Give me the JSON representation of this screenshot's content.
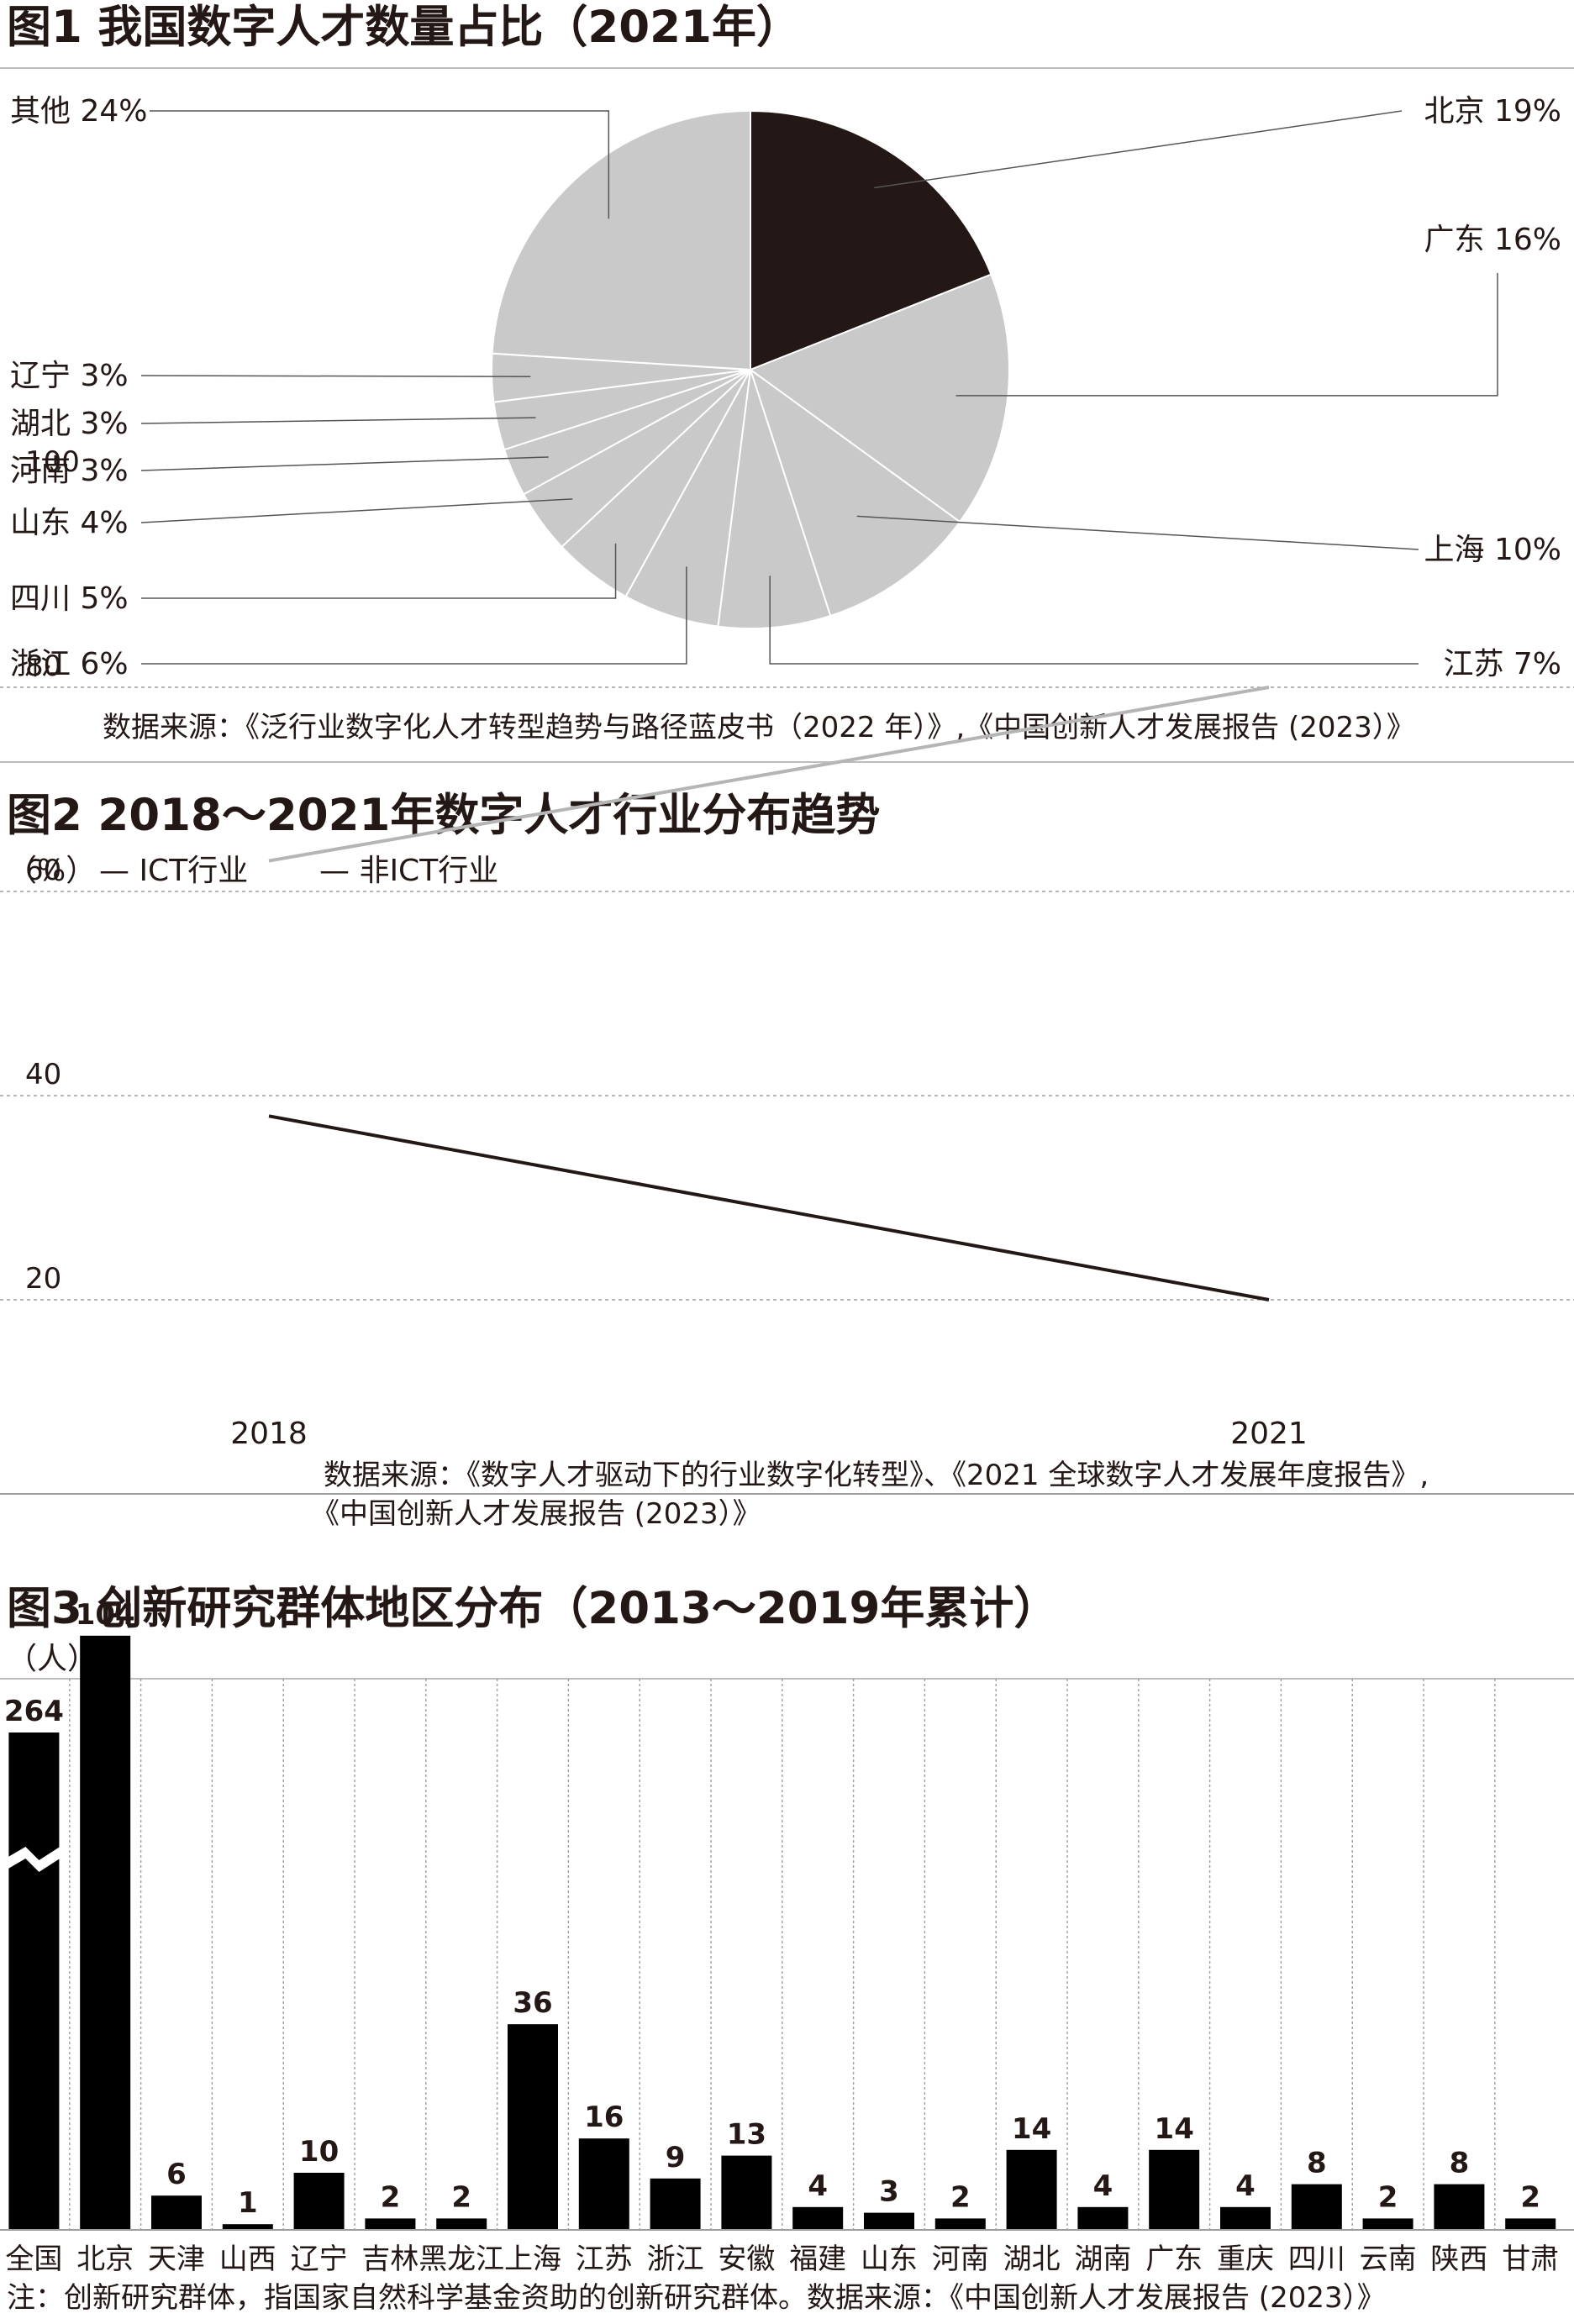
{
  "colors": {
    "dark": "#231815",
    "light": "#c9c9ca",
    "grid": "#9d9d9d",
    "bar": "#000000"
  },
  "fig1": {
    "title": "图1 我国数字人才数量占比（2021年）",
    "source": "数据来源：《泛行业数字化人才转型趋势与路径蓝皮书（2022 年）》,《中国创新人才发展报告 (2023）》"
  },
  "fig2": {
    "title": "图2 2018～2021年数字人才行业分布趋势",
    "unit": "（%）",
    "legend": [
      "— ICT行业",
      "— 非ICT行业"
    ],
    "source_line1": "数据来源：《数字人才驱动下的行业数字化转型》、《2021 全球数字人才发展年度报告》,",
    "source_line2": "《中国创新人才发展报告 (2023）》"
  },
  "fig3": {
    "title": "图3 创新研究群体地区分布（2013～2019年累计）",
    "unit": "（人）",
    "note": "注：创新研究群体，指国家自然科学基金资助的创新研究群体。数据来源：《中国创新人才发展报告 (2023）》"
  },
  "chart_data": [
    {
      "type": "pie",
      "title": "图1 我国数字人才数量占比（2021年）",
      "slices": [
        {
          "label": "北京",
          "value": 19,
          "display": "北京 19%"
        },
        {
          "label": "广东",
          "value": 16,
          "display": "广东 16%"
        },
        {
          "label": "上海",
          "value": 10,
          "display": "上海 10%"
        },
        {
          "label": "江苏",
          "value": 7,
          "display": "江苏 7%"
        },
        {
          "label": "浙江",
          "value": 6,
          "display": "浙江 6%"
        },
        {
          "label": "四川",
          "value": 5,
          "display": "四川 5%"
        },
        {
          "label": "山东",
          "value": 4,
          "display": "山东 4%"
        },
        {
          "label": "河南",
          "value": 3,
          "display": "河南 3%"
        },
        {
          "label": "湖北",
          "value": 3,
          "display": "湖北 3%"
        },
        {
          "label": "辽宁",
          "value": 3,
          "display": "辽宁 3%"
        },
        {
          "label": "其他",
          "value": 24,
          "display": "其他 24%"
        }
      ]
    },
    {
      "type": "line",
      "title": "图2 2018～2021年数字人才行业分布趋势",
      "ylabel": "（%）",
      "x": [
        "2018",
        "2021"
      ],
      "ylim": [
        0,
        100
      ],
      "yticks": [
        100,
        80,
        60,
        40,
        20
      ],
      "grid": true,
      "legend_position": "top-left",
      "series": [
        {
          "name": "ICT行业",
          "values": [
            38,
            20
          ]
        },
        {
          "name": "非ICT行业",
          "values": [
            63,
            80
          ]
        }
      ]
    },
    {
      "type": "bar",
      "title": "图3 创新研究群体地区分布（2013～2019年累计）",
      "ylabel": "（人）",
      "categories": [
        "全国",
        "北京",
        "天津",
        "山西",
        "辽宁",
        "吉林",
        "黑龙江",
        "上海",
        "江苏",
        "浙江",
        "安徽",
        "福建",
        "山东",
        "河南",
        "湖北",
        "湖南",
        "广东",
        "重庆",
        "四川",
        "云南",
        "陕西",
        "甘肃"
      ],
      "values": [
        264,
        104,
        6,
        1,
        10,
        2,
        2,
        36,
        16,
        9,
        13,
        4,
        3,
        2,
        14,
        4,
        14,
        4,
        8,
        2,
        8,
        2
      ],
      "axis_break": true
    }
  ]
}
